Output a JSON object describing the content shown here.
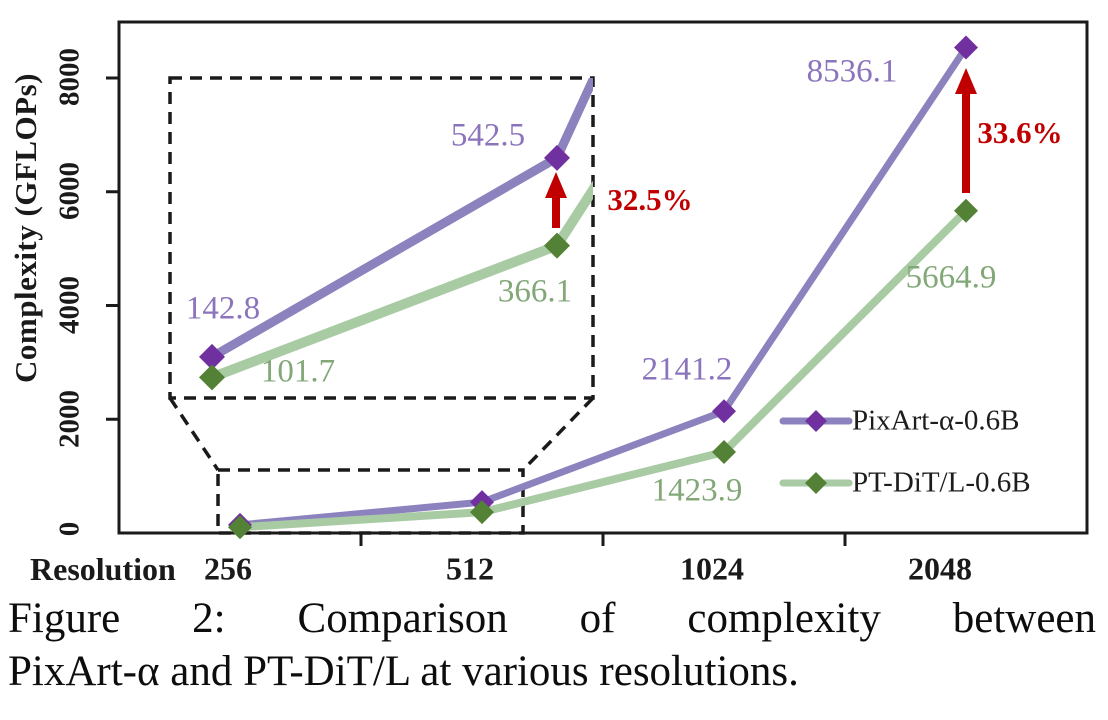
{
  "colors": {
    "pixart_line": "#8C82BE",
    "pixart_marker": "#7030A0",
    "pixart_label": "#8B74BC",
    "ptdit_line": "#A9CBA4",
    "ptdit_marker": "#538135",
    "ptdit_label": "#82A878",
    "arrow_red": "#C00000",
    "axis": "#1A1A1A"
  },
  "chart_data": {
    "type": "line",
    "title": "",
    "xlabel": "Resolution",
    "ylabel": "Complexity (GFLOPs)",
    "categories": [
      "256",
      "512",
      "1024",
      "2048"
    ],
    "y_ticks": [
      "0",
      "2000",
      "4000",
      "6000",
      "8000"
    ],
    "ylim": [
      0,
      8000
    ],
    "grid": false,
    "legend_position": "inside-right",
    "series": [
      {
        "name": "PixArt-α-0.6B",
        "values": [
          142.8,
          542.5,
          2141.2,
          8536.1
        ],
        "point_labels": [
          "142.8",
          "542.5",
          "2141.2",
          "8536.1"
        ]
      },
      {
        "name": "PT-DiT/L-0.6B",
        "values": [
          101.7,
          366.1,
          1423.9,
          5664.9
        ],
        "point_labels": [
          "101.7",
          "366.1",
          "1423.9",
          "5664.9"
        ]
      }
    ],
    "annotations": [
      {
        "text": "32.5%",
        "at_category": "512"
      },
      {
        "text": "33.6%",
        "at_category": "2048"
      }
    ],
    "inset": {
      "zoomed_categories": [
        "256",
        "512"
      ]
    }
  },
  "figure": {
    "caption_line1": "Figure 2:  Comparison of complexity between",
    "caption_line2": "PixArt-α and PT-DiT/L at various resolutions."
  }
}
